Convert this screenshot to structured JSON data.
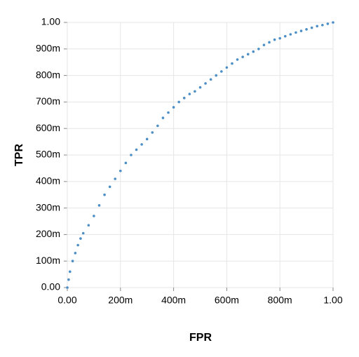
{
  "chart_data": {
    "type": "scatter",
    "x_label": "FPR",
    "y_label": "TPR",
    "xlim": [
      0,
      1
    ],
    "ylim": [
      0,
      1
    ],
    "xticks": [
      {
        "value": 0,
        "label": "0.00"
      },
      {
        "value": 0.2,
        "label": "200m"
      },
      {
        "value": 0.4,
        "label": "400m"
      },
      {
        "value": 0.6,
        "label": "600m"
      },
      {
        "value": 0.8,
        "label": "800m"
      },
      {
        "value": 1,
        "label": "1.00"
      }
    ],
    "yticks": [
      {
        "value": 0,
        "label": "0.00"
      },
      {
        "value": 0.1,
        "label": "100m"
      },
      {
        "value": 0.2,
        "label": "200m"
      },
      {
        "value": 0.3,
        "label": "300m"
      },
      {
        "value": 0.4,
        "label": "400m"
      },
      {
        "value": 0.5,
        "label": "500m"
      },
      {
        "value": 0.6,
        "label": "600m"
      },
      {
        "value": 0.7,
        "label": "700m"
      },
      {
        "value": 0.8,
        "label": "800m"
      },
      {
        "value": 0.9,
        "label": "900m"
      },
      {
        "value": 1,
        "label": "1.00"
      }
    ],
    "grid": true,
    "color": "#4c8fc6",
    "x": [
      0,
      0.005,
      0.01,
      0.02,
      0.03,
      0.04,
      0.05,
      0.06,
      0.08,
      0.1,
      0.12,
      0.14,
      0.16,
      0.18,
      0.2,
      0.22,
      0.24,
      0.26,
      0.28,
      0.3,
      0.32,
      0.34,
      0.36,
      0.38,
      0.4,
      0.42,
      0.44,
      0.46,
      0.48,
      0.5,
      0.52,
      0.54,
      0.56,
      0.58,
      0.6,
      0.62,
      0.64,
      0.66,
      0.68,
      0.7,
      0.72,
      0.74,
      0.76,
      0.78,
      0.8,
      0.82,
      0.84,
      0.86,
      0.88,
      0.9,
      0.92,
      0.94,
      0.96,
      0.98,
      1.0
    ],
    "values": [
      0,
      0.03,
      0.06,
      0.1,
      0.13,
      0.16,
      0.185,
      0.205,
      0.235,
      0.27,
      0.31,
      0.35,
      0.38,
      0.41,
      0.44,
      0.47,
      0.5,
      0.52,
      0.54,
      0.56,
      0.585,
      0.61,
      0.64,
      0.66,
      0.68,
      0.7,
      0.715,
      0.73,
      0.74,
      0.755,
      0.77,
      0.785,
      0.8,
      0.815,
      0.83,
      0.845,
      0.86,
      0.87,
      0.88,
      0.89,
      0.9,
      0.915,
      0.925,
      0.935,
      0.94,
      0.948,
      0.955,
      0.962,
      0.968,
      0.974,
      0.98,
      0.986,
      0.99,
      0.995,
      1.0
    ]
  }
}
